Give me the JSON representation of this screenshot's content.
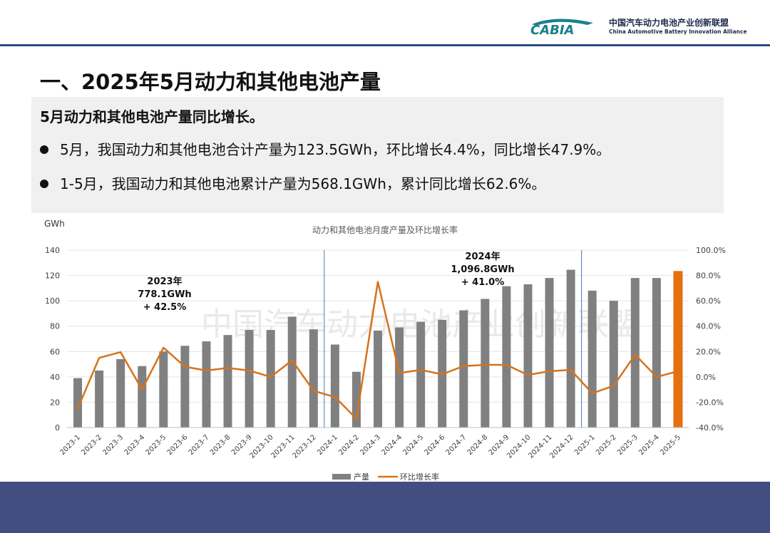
{
  "header": {
    "logo_text": "CABIA",
    "org_name_cn": "中国汽车动力电池产业创新联盟",
    "org_name_en": "China Automotive Battery Innovation Alliance"
  },
  "page_title": "一、2025年5月动力和其他电池产量",
  "summary": {
    "heading": "5月动力和其他电池产量同比增长。",
    "bullets": [
      "5月，我国动力和其他电池合计产量为123.5GWh，环比增长4.4%，同比增长47.9%。",
      "1-5月，我国动力和其他电池累计产量为568.1GWh，累计同比增长62.6%。"
    ]
  },
  "watermark": "中国汽车动力电池产业创新联盟",
  "chart_data": {
    "type": "bar",
    "title": "动力和其他电池月度产量及环比增长率",
    "ylabel": "GWh",
    "ylim": [
      0,
      140
    ],
    "yticks": [
      "0",
      "20",
      "40",
      "60",
      "80",
      "100",
      "120",
      "140"
    ],
    "y2lim": [
      -40,
      100
    ],
    "y2ticks": [
      "-40.0%",
      "-20.0%",
      "0.0%",
      "20.0%",
      "40.0%",
      "60.0%",
      "80.0%",
      "100.0%"
    ],
    "categories": [
      "2023-1",
      "2023-2",
      "2023-3",
      "2023-4",
      "2023-5",
      "2023-6",
      "2023-7",
      "2023-8",
      "2023-9",
      "2023-10",
      "2023-11",
      "2023-12",
      "2024-1",
      "2024-2",
      "2024-3",
      "2024-4",
      "2024-5",
      "2024-6",
      "2024-7",
      "2024-8",
      "2024-9",
      "2024-10",
      "2024-11",
      "2024-12",
      "2025-1",
      "2025-2",
      "2025-3",
      "2025-4",
      "2025-5"
    ],
    "series": [
      {
        "name": "产量",
        "axis": "left",
        "kind": "bar",
        "color": "#808080",
        "highlight_color": "#e6700f",
        "values": [
          39,
          45,
          54,
          48.5,
          60,
          64.5,
          68,
          73,
          77,
          77,
          87.5,
          77.5,
          65.5,
          44,
          76.5,
          79,
          83.5,
          85,
          92.5,
          101.5,
          111.5,
          113,
          118,
          124.5,
          108,
          100,
          118,
          118,
          123.5
        ]
      },
      {
        "name": "环比增长率",
        "axis": "right",
        "kind": "line",
        "color": "#d6731a",
        "values": [
          -25,
          15,
          19.5,
          -10,
          23,
          8,
          5,
          7,
          5,
          0,
          13,
          -11,
          -16,
          -33,
          75,
          3,
          5.5,
          2,
          8.5,
          9.5,
          9.5,
          1.5,
          4.5,
          5.5,
          -13,
          -7,
          17.5,
          0,
          4.4
        ]
      }
    ],
    "annotations": [
      {
        "lines": [
          "2023年",
          "778.1GWh",
          "+ 42.5%"
        ]
      },
      {
        "lines": [
          "2024年",
          "1,096.8GWh",
          "+ 41.0%"
        ]
      }
    ],
    "legend": "bottom",
    "grid": true
  },
  "colors": {
    "header_rule": "#2e4a86",
    "footer_band": "#434d7f",
    "summary_bg": "#f0f0f0",
    "bar": "#808080",
    "bar_highlight": "#e6700f",
    "line": "#d6731a"
  }
}
